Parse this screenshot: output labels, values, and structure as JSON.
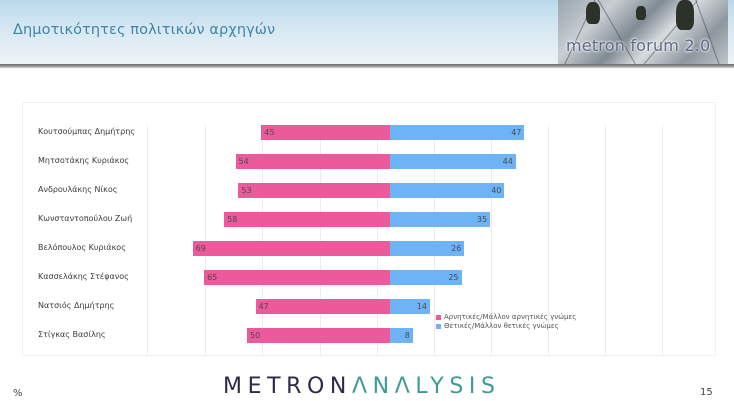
{
  "header": {
    "title": "Δημοτικότητες πολιτικών αρχηγών",
    "brand_label": "metron forum 2.0"
  },
  "colors": {
    "negative": "#ec5a9c",
    "positive": "#6db3f6",
    "title": "#3e86a8",
    "logo_metron": "#2b2b4a",
    "logo_analysis": "#3c9b93"
  },
  "legend": {
    "negative_label": "Αρνητικές/Μάλλον αρνητικές γνώμες",
    "positive_label": "Θετικές/Μάλλον θετικές γνώμες"
  },
  "rows": [
    {
      "name": "Κουτσούμπας Δημήτρης",
      "negative": "45",
      "positive": "47"
    },
    {
      "name": "Μητσοτάκης Κυριάκος",
      "negative": "54",
      "positive": "44"
    },
    {
      "name": "Ανδρουλάκης Νίκος",
      "negative": "53",
      "positive": "40"
    },
    {
      "name": "Κωνσταντοπούλου Ζωή",
      "negative": "58",
      "positive": "35"
    },
    {
      "name": "Βελόπουλος Κυριάκος",
      "negative": "69",
      "positive": "26"
    },
    {
      "name": "Κασσελάκης Στέφανος",
      "negative": "65",
      "positive": "25"
    },
    {
      "name": "Νατσιός Δημήτρης",
      "negative": "47",
      "positive": "14"
    },
    {
      "name": "Στίγκας Βασίλης",
      "negative": "50",
      "positive": "8"
    }
  ],
  "footer": {
    "unit": "%",
    "logo_metron": "METRON",
    "logo_analysis": "ΛNΛLYSIS",
    "page_number": "15"
  },
  "chart_data": {
    "type": "bar",
    "orientation": "horizontal",
    "stacked": "diverging",
    "title": "Δημοτικότητες πολιτικών αρχηγών",
    "categories": [
      "Κουτσούμπας Δημήτρης",
      "Μητσοτάκης Κυριάκος",
      "Ανδρουλάκης Νίκος",
      "Κωνσταντοπούλου Ζωή",
      "Βελόπουλος Κυριάκος",
      "Κασσελάκης Στέφανος",
      "Νατσιός Δημήτρης",
      "Στίγκας Βασίλης"
    ],
    "series": [
      {
        "name": "Αρνητικές/Μάλλον αρνητικές γνώμες",
        "color": "#ec5a9c",
        "values": [
          45,
          54,
          53,
          58,
          69,
          65,
          47,
          50
        ]
      },
      {
        "name": "Θετικές/Μάλλον θετικές γνώμες",
        "color": "#6db3f6",
        "values": [
          47,
          44,
          40,
          35,
          26,
          25,
          14,
          8
        ]
      }
    ],
    "xlabel": "%",
    "ylabel": "",
    "grid": true,
    "legend_position": "lower right (inside plot)",
    "data_labels": true
  }
}
